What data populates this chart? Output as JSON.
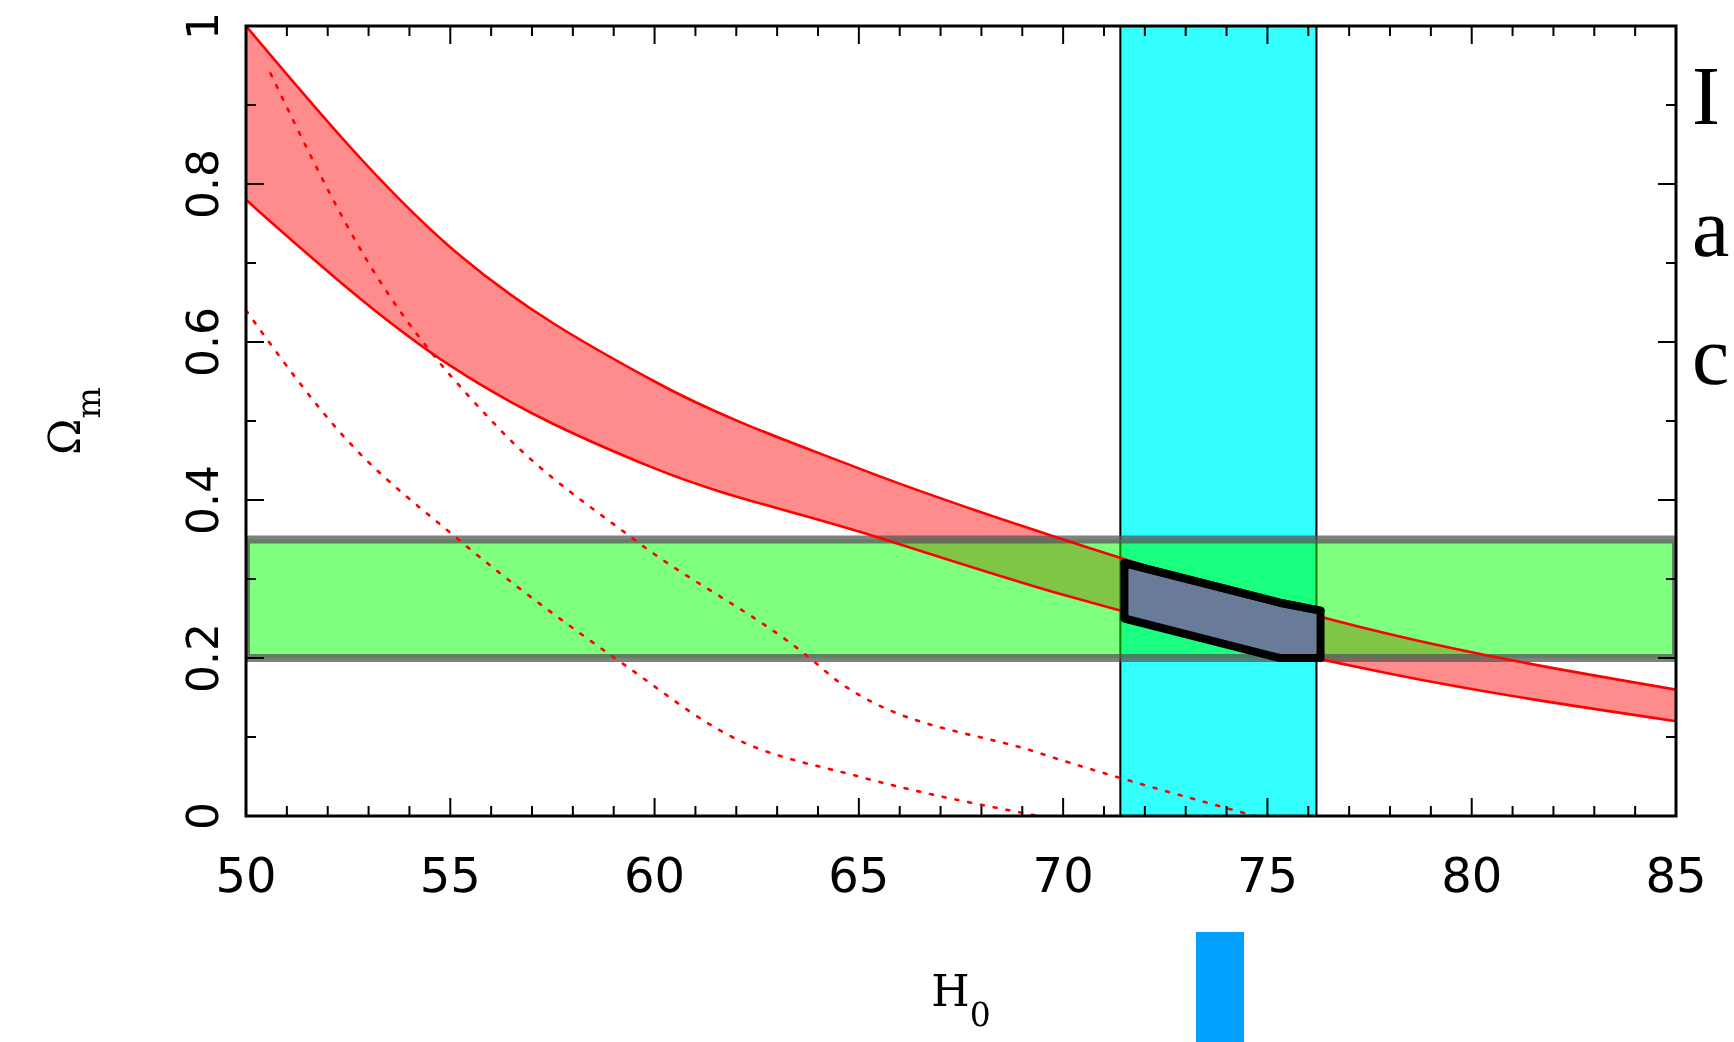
{
  "chart_data": {
    "type": "line",
    "xlabel": "H$_{0}$",
    "ylabel": "Ω$_{m}$",
    "xlim": [
      50,
      85
    ],
    "ylim": [
      0,
      1
    ],
    "xticks": [
      50,
      {
        "value": 51,
        "label": null
      },
      {
        "value": 52,
        "label": null
      },
      {
        "value": 53,
        "label": null
      },
      {
        "value": 54,
        "label": null
      },
      55,
      {
        "value": 56,
        "label": null
      },
      {
        "value": 57,
        "label": null
      },
      {
        "value": 58,
        "label": null
      },
      {
        "value": 59,
        "label": null
      },
      60,
      {
        "value": 61,
        "label": null
      },
      {
        "value": 62,
        "label": null
      },
      {
        "value": 63,
        "label": null
      },
      {
        "value": 64,
        "label": null
      },
      65,
      {
        "value": 66,
        "label": null
      },
      {
        "value": 67,
        "label": null
      },
      {
        "value": 68,
        "label": null
      },
      {
        "value": 69,
        "label": null
      },
      70,
      {
        "value": 71,
        "label": null
      },
      {
        "value": 72,
        "label": null
      },
      {
        "value": 73,
        "label": null
      },
      {
        "value": 74,
        "label": null
      },
      75,
      {
        "value": 76,
        "label": null
      },
      {
        "value": 77,
        "label": null
      },
      {
        "value": 78,
        "label": null
      },
      {
        "value": 79,
        "label": null
      },
      80,
      {
        "value": 81,
        "label": null
      },
      {
        "value": 82,
        "label": null
      },
      {
        "value": 83,
        "label": null
      },
      {
        "value": 84,
        "label": null
      },
      85
    ],
    "yticks": [
      0,
      {
        "value": 0.1,
        "label": null
      },
      0.2,
      {
        "value": 0.3,
        "label": null
      },
      0.4,
      {
        "value": 0.5,
        "label": null
      },
      0.6,
      {
        "value": 0.7,
        "label": null
      },
      0.8,
      {
        "value": 0.9,
        "label": null
      },
      1
    ],
    "grid": false,
    "series": [
      {
        "color": "#ff0000",
        "x": [
          50,
          55,
          60,
          65,
          70,
          78,
          85
        ],
        "values": [
          0.78,
          0.57,
          0.44,
          0.36,
          0.28,
          0.18,
          0.12
        ],
        "lower": [
          0.78,
          0.57,
          0.44,
          0.36,
          0.28,
          0.18,
          0.12
        ],
        "upper": [
          1.0,
          0.72,
          0.55,
          0.44,
          0.35,
          0.23,
          0.16
        ]
      },
      {
        "color": "#ff0000",
        "x": [
          50,
          55,
          60,
          65,
          70,
          78,
          85
        ],
        "values": [
          1.0,
          0.72,
          0.55,
          0.44,
          0.35,
          0.23,
          0.16
        ]
      },
      {
        "line_style": "dotted",
        "color": "#ff0000",
        "x": [
          50.6,
          53.0,
          56.2,
          59.5,
          63.8,
          64.5,
          69.4,
          74.7
        ],
        "values": [
          0.94,
          0.7,
          0.49,
          0.35,
          0.2,
          0.17,
          0.08,
          0
        ]
      },
      {
        "line_style": "dotted",
        "color": "#ff0000",
        "x": [
          50,
          52.4,
          55.2,
          59.3,
          61.9,
          65.0,
          69.4
        ],
        "values": [
          0.64,
          0.48,
          0.35,
          0.19,
          0.1,
          0.05,
          0
        ]
      },
      {
        "color": "#000000",
        "x": [
          71.5,
          75.3,
          76.3
        ],
        "values": [
          0.32,
          0.27,
          0.26
        ],
        "lower": [
          0.25,
          0.2,
          0.2
        ],
        "upper": [
          0.32,
          0.27,
          0.26
        ]
      }
    ],
    "bands": [
      {
        "axis": "x",
        "from": 71.4,
        "to": 76.2,
        "color": "#33ffff"
      },
      {
        "axis": "y",
        "from": 0.2,
        "to": 0.35,
        "color": "#00ff00"
      }
    ],
    "annotations": [
      "I",
      "a",
      "c"
    ]
  }
}
